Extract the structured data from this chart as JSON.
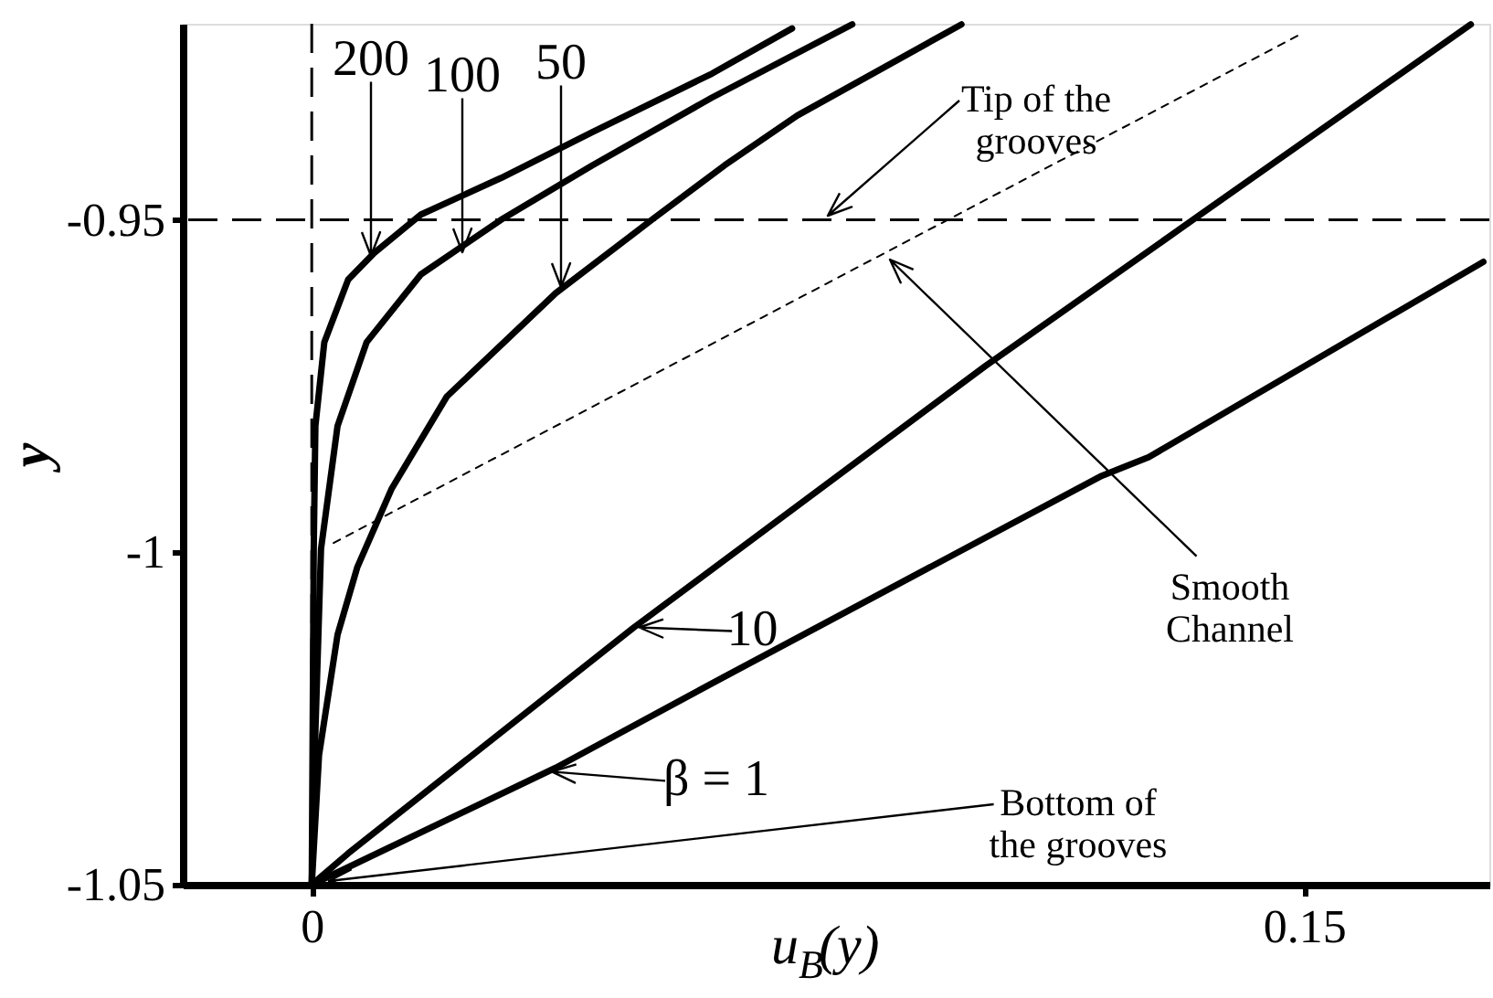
{
  "chart_data": {
    "type": "line",
    "xlabel": "u$_{B}$(y)",
    "ylabel": "y",
    "xlim": [
      -0.0195,
      0.178
    ],
    "ylim": [
      -1.05,
      -0.9205
    ],
    "xticks": [
      0,
      0.15
    ],
    "yticks": [
      -0.95,
      -1,
      -1.05
    ],
    "grid": false,
    "series": [
      {
        "color": "#000000",
        "x": [
          0,
          0.0003,
          0.00055,
          0.0019,
          0.0055,
          0.0094,
          0.0165,
          0.0286,
          0.0424,
          0.0605,
          0.0726
        ],
        "values": [
          -1.05,
          -0.9995,
          -0.981,
          -0.9684,
          -0.959,
          -0.955,
          -0.9492,
          -0.9437,
          -0.9368,
          -0.928,
          -0.9212
        ]
      },
      {
        "color": "#000000",
        "x": [
          0,
          0.00055,
          0.0014,
          0.0039,
          0.0083,
          0.0165,
          0.0286,
          0.0424,
          0.0605,
          0.0817
        ],
        "values": [
          -1.05,
          -1.027,
          -0.9995,
          -0.981,
          -0.9684,
          -0.9582,
          -0.95,
          -0.9418,
          -0.9316,
          -0.9206
        ]
      },
      {
        "color": "#000000",
        "x": [
          0,
          0.0011,
          0.0039,
          0.0069,
          0.0121,
          0.0204,
          0.0369,
          0.0514,
          0.0624,
          0.0734,
          0.0982
        ],
        "values": [
          -1.05,
          -1.0305,
          -1.0124,
          -1.0022,
          -0.9904,
          -0.9766,
          -0.961,
          -0.95,
          -0.9418,
          -0.9343,
          -0.9206
        ]
      },
      {
        "color": "#000000",
        "x": [
          0,
          0.0055,
          0.0487,
          0.1018,
          0.1339,
          0.1752
        ],
        "values": [
          -1.05,
          -1.0453,
          -1.0113,
          -0.972,
          -0.9495,
          -0.9206
        ]
      },
      {
        "color": "#000000",
        "x": [
          0,
          0.0369,
          0.0624,
          0.1194,
          0.1265,
          0.1771
        ],
        "values": [
          -1.05,
          -1.0324,
          -1.0187,
          -0.9885,
          -0.9857,
          -0.9563
        ]
      },
      {
        "color": "#000000",
        "line_style": "dotted",
        "x": [
          0.0033,
          0.1496
        ],
        "values": [
          -0.9986,
          -0.922
        ]
      }
    ],
    "ref_lines": [
      {
        "axis": "y",
        "value": -0.95,
        "color": "#000000",
        "line_style": "dashed"
      },
      {
        "axis": "x",
        "value": 0,
        "color": "#000000",
        "line_style": "dashed"
      }
    ],
    "annotations": [
      "200",
      "100",
      "50",
      {
        "text": "10",
        "x": 0.0495,
        "y": -1.0113
      },
      {
        "text": "β = 1",
        "x": 0.0363,
        "y": -1.033
      },
      "Tip of the grooves",
      "Smooth Channel",
      "Bottom of the grooves"
    ]
  }
}
